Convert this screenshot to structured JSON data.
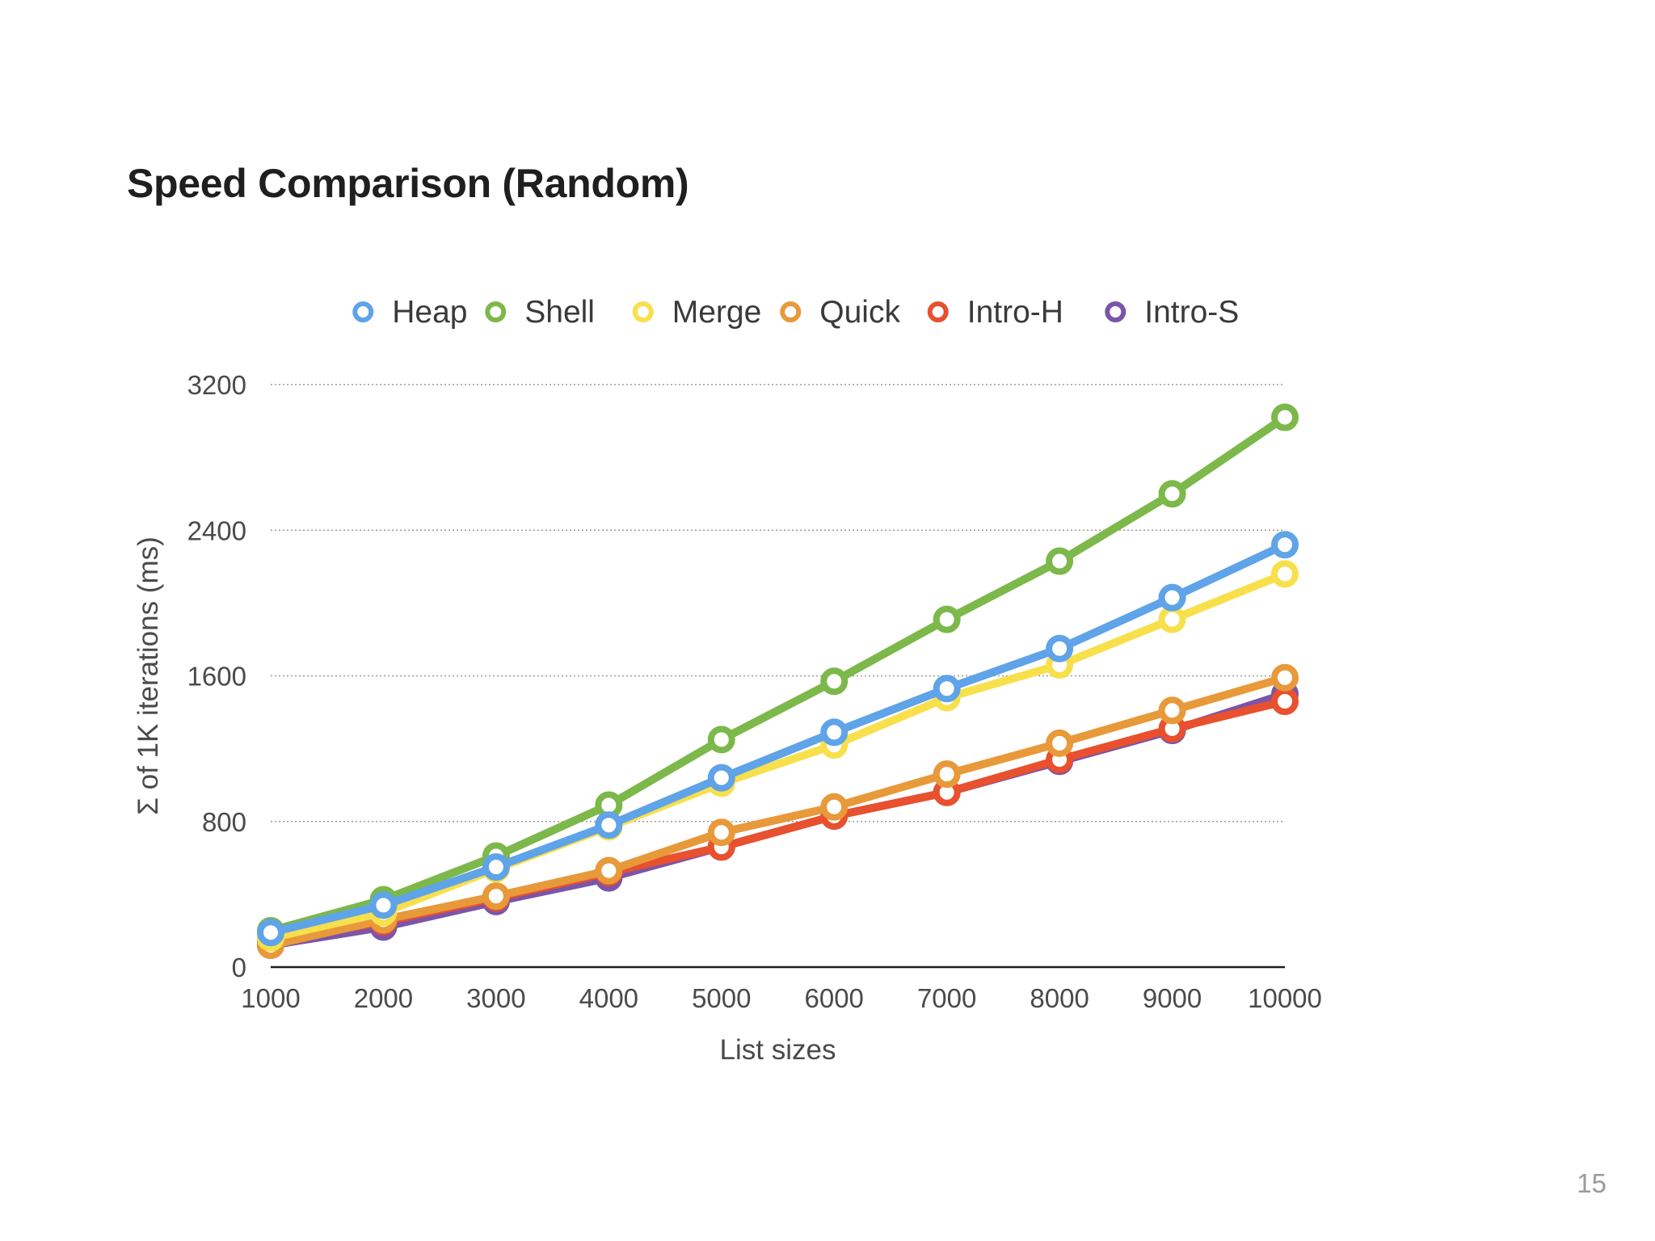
{
  "slide": {
    "title": "Speed Comparison (Random)",
    "page_number": "15"
  },
  "chart_data": {
    "type": "line",
    "title": "Speed Comparison (Random)",
    "xlabel": "List sizes",
    "ylabel": "Σ of 1K iterations (ms)",
    "x": [
      1000,
      2000,
      3000,
      4000,
      5000,
      6000,
      7000,
      8000,
      9000,
      10000
    ],
    "x_tick_labels": [
      "1000",
      "2000",
      "3000",
      "4000",
      "5000",
      "6000",
      "7000",
      "8000",
      "9000",
      "10000"
    ],
    "ylim": [
      0,
      3200
    ],
    "y_ticks": [
      0,
      800,
      1600,
      2400,
      3200
    ],
    "y_tick_labels": [
      "0",
      "800",
      "1600",
      "2400",
      "3200"
    ],
    "grid": true,
    "legend_position": "top",
    "series": [
      {
        "name": "Intro-S",
        "color": "#7b55a8",
        "values": [
          120,
          220,
          360,
          490,
          660,
          830,
          960,
          1130,
          1300,
          1500
        ]
      },
      {
        "name": "Intro-H",
        "color": "#e8502e",
        "values": [
          140,
          250,
          380,
          520,
          660,
          830,
          960,
          1140,
          1310,
          1460
        ]
      },
      {
        "name": "Quick",
        "color": "#e8993a",
        "values": [
          120,
          260,
          390,
          530,
          740,
          880,
          1060,
          1230,
          1410,
          1590
        ]
      },
      {
        "name": "Merge",
        "color": "#f7e04b",
        "values": [
          160,
          300,
          540,
          770,
          1010,
          1220,
          1480,
          1660,
          1910,
          2160
        ]
      },
      {
        "name": "Shell",
        "color": "#7cb84a",
        "values": [
          200,
          370,
          610,
          890,
          1250,
          1570,
          1910,
          2230,
          2600,
          3020
        ]
      },
      {
        "name": "Heap",
        "color": "#5fa3e8",
        "values": [
          190,
          340,
          550,
          780,
          1040,
          1290,
          1530,
          1750,
          2030,
          2320
        ]
      }
    ],
    "legend": [
      {
        "name": "Heap",
        "color": "#5fa3e8"
      },
      {
        "name": "Shell",
        "color": "#7cb84a"
      },
      {
        "name": "Merge",
        "color": "#f7e04b"
      },
      {
        "name": "Quick",
        "color": "#e8993a"
      },
      {
        "name": "Intro-H",
        "color": "#e8502e"
      },
      {
        "name": "Intro-S",
        "color": "#7b55a8"
      }
    ]
  }
}
